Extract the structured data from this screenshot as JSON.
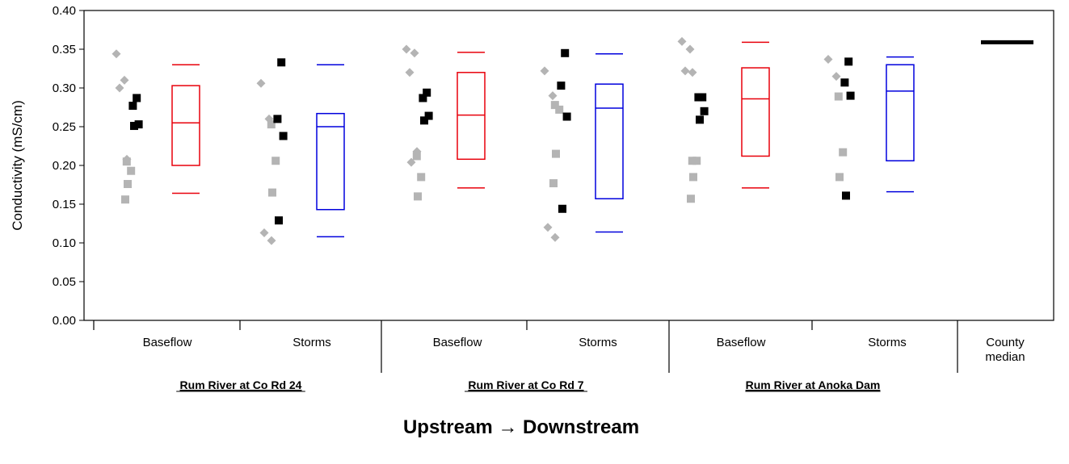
{
  "chart_data": {
    "type": "scatter",
    "ylabel": "Conductivity (mS/cm)",
    "ylim": [
      0,
      0.4
    ],
    "yticks": [
      "0.00",
      "0.05",
      "0.10",
      "0.15",
      "0.20",
      "0.25",
      "0.30",
      "0.35",
      "0.40"
    ],
    "direction_label": "Upstream  → Downstream",
    "colors": {
      "baseflow": "#e8000b",
      "storms": "#0000dd",
      "black_points": "#000000",
      "gray_points": "#b4b4b4"
    },
    "groups": [
      {
        "category": "Baseflow",
        "site": "Rum River at Co Rd 24",
        "box_color": "#e8000b",
        "box": {
          "min": 0.164,
          "q1": 0.2,
          "median": 0.255,
          "q3": 0.303,
          "max": 0.33
        },
        "gray_diamonds": [
          0.344,
          0.31,
          0.3,
          0.208
        ],
        "gray_squares": [
          0.205,
          0.193,
          0.176,
          0.156
        ],
        "black_squares": [
          0.287,
          0.277,
          0.253,
          0.251
        ]
      },
      {
        "category": "Storms",
        "site": "Rum River at Co Rd 24",
        "box_color": "#0000dd",
        "box": {
          "min": 0.108,
          "q1": 0.143,
          "median": 0.25,
          "q3": 0.267,
          "max": 0.33
        },
        "gray_diamonds": [
          0.306,
          0.26,
          0.113,
          0.103
        ],
        "gray_squares": [
          0.253,
          0.206,
          0.165
        ],
        "black_squares": [
          0.333,
          0.26,
          0.238,
          0.129
        ]
      },
      {
        "category": "Baseflow",
        "site": "Rum River at Co Rd 7",
        "box_color": "#e8000b",
        "box": {
          "min": 0.171,
          "q1": 0.208,
          "median": 0.265,
          "q3": 0.32,
          "max": 0.346
        },
        "gray_diamonds": [
          0.35,
          0.345,
          0.32,
          0.218,
          0.204
        ],
        "gray_squares": [
          0.212,
          0.185,
          0.16
        ],
        "black_squares": [
          0.294,
          0.287,
          0.264,
          0.258
        ]
      },
      {
        "category": "Storms",
        "site": "Rum River at Co Rd 7",
        "box_color": "#0000dd",
        "box": {
          "min": 0.114,
          "q1": 0.157,
          "median": 0.274,
          "q3": 0.305,
          "max": 0.344
        },
        "gray_diamonds": [
          0.322,
          0.29,
          0.12,
          0.107
        ],
        "gray_squares": [
          0.278,
          0.272,
          0.215,
          0.177
        ],
        "black_squares": [
          0.345,
          0.303,
          0.263,
          0.144
        ]
      },
      {
        "category": "Baseflow",
        "site": "Rum River at Anoka Dam",
        "box_color": "#e8000b",
        "box": {
          "min": 0.171,
          "q1": 0.212,
          "median": 0.286,
          "q3": 0.326,
          "max": 0.359
        },
        "gray_diamonds": [
          0.36,
          0.35,
          0.322,
          0.32
        ],
        "gray_squares": [
          0.206,
          0.206,
          0.185,
          0.157
        ],
        "black_squares": [
          0.288,
          0.288,
          0.27,
          0.259
        ]
      },
      {
        "category": "Storms",
        "site": "Rum River at Anoka Dam",
        "box_color": "#0000dd",
        "box": {
          "min": 0.166,
          "q1": 0.206,
          "median": 0.296,
          "q3": 0.33,
          "max": 0.34
        },
        "gray_diamonds": [
          0.337,
          0.315
        ],
        "gray_squares": [
          0.289,
          0.217,
          0.185
        ],
        "black_squares": [
          0.334,
          0.307,
          0.29,
          0.161
        ]
      },
      {
        "category": "County\nmedian",
        "site": "",
        "county_median": 0.359
      }
    ],
    "sites": [
      "Rum River at Co Rd 24",
      "Rum River at Co Rd 7",
      "Rum River at Anoka Dam"
    ]
  }
}
